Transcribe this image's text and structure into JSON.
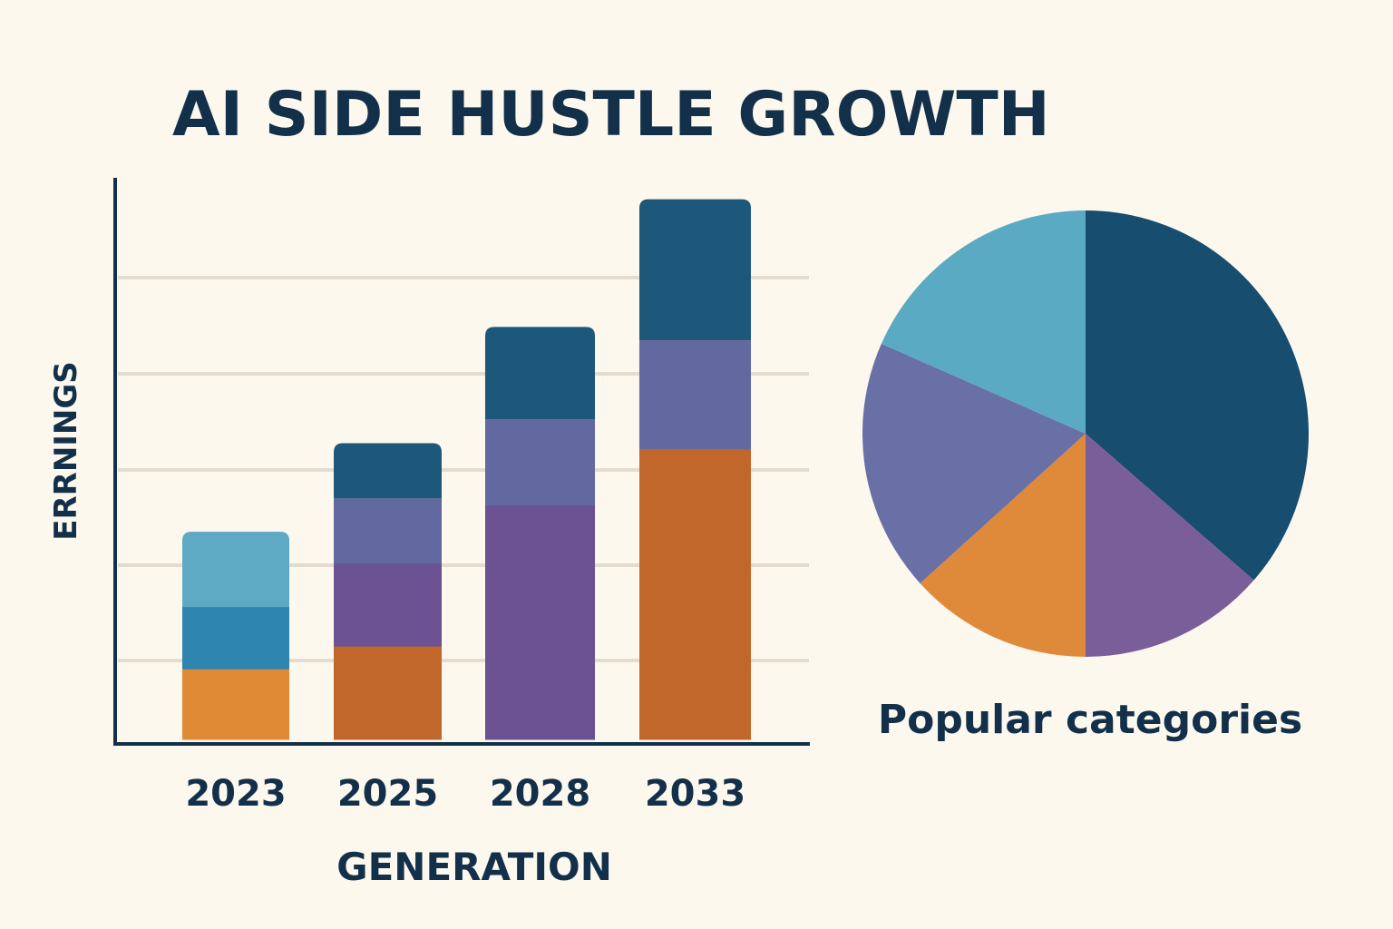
{
  "title": "AI SIDE HUSTLE GROWTH",
  "chart_data": [
    {
      "type": "bar",
      "stacked": true,
      "xlabel": "GENERATION",
      "ylabel": "ERRNINGS",
      "categories": [
        "2023",
        "2025",
        "2028",
        "2033"
      ],
      "grid": true,
      "ylim": [
        0,
        59
      ],
      "bars": [
        {
          "category": "2023",
          "segments": [
            {
              "value": 7.4,
              "color": "#e08a35"
            },
            {
              "value": 6.5,
              "color": "#2e86b0"
            },
            {
              "value": 7.9,
              "color": "#5eaac5"
            }
          ]
        },
        {
          "category": "2025",
          "segments": [
            {
              "value": 9.8,
              "color": "#c2672c"
            },
            {
              "value": 8.7,
              "color": "#6a5293"
            },
            {
              "value": 6.8,
              "color": "#6268a0"
            },
            {
              "value": 5.8,
              "color": "#1d587a"
            }
          ]
        },
        {
          "category": "2028",
          "segments": [
            {
              "value": 24.6,
              "color": "#6a5293"
            },
            {
              "value": 9.0,
              "color": "#6268a0"
            },
            {
              "value": 9.7,
              "color": "#1d587a"
            }
          ]
        },
        {
          "category": "2033",
          "segments": [
            {
              "value": 30.5,
              "color": "#c2672c"
            },
            {
              "value": 11.4,
              "color": "#6268a0"
            },
            {
              "value": 14.8,
              "color": "#1d587a"
            }
          ]
        }
      ]
    },
    {
      "type": "pie",
      "label": "Popular categories",
      "slices": [
        {
          "value": 36.4,
          "color": "#174d6e"
        },
        {
          "value": 13.6,
          "color": "#7a5e9a"
        },
        {
          "value": 13.3,
          "color": "#df8a3a"
        },
        {
          "value": 18.3,
          "color": "#6870a6"
        },
        {
          "value": 18.4,
          "color": "#5aaac4"
        }
      ]
    }
  ]
}
